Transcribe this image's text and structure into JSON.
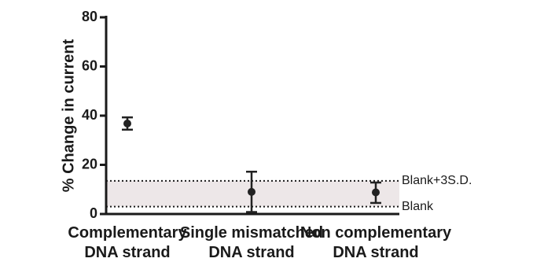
{
  "chart_data": {
    "type": "scatter",
    "ylabel": "% Change in current",
    "xlabel": "",
    "ylim": [
      0,
      80
    ],
    "yticks": [
      "0",
      "20",
      "40",
      "60",
      "80"
    ],
    "grid": false,
    "categories": [
      {
        "line1": "Complementary",
        "line2": "DNA strand"
      },
      {
        "line1": "Single mismatched",
        "line2": "DNA strand"
      },
      {
        "line1": "Non complementary",
        "line2": "DNA strand"
      }
    ],
    "series": [
      {
        "values": [
          36.8,
          9.0,
          8.8
        ],
        "err_low": [
          34.3,
          0.8,
          4.5
        ],
        "err_high": [
          39.3,
          17.2,
          12.8
        ]
      }
    ],
    "reference_band": {
      "low": 3.0,
      "high": 13.5,
      "color": "#ede7e8"
    },
    "reference_lines": [
      {
        "label": "Blank+3S.D.",
        "value": 13.5
      },
      {
        "label": "Blank",
        "value": 3.0
      }
    ],
    "marker_color": "#222222"
  }
}
